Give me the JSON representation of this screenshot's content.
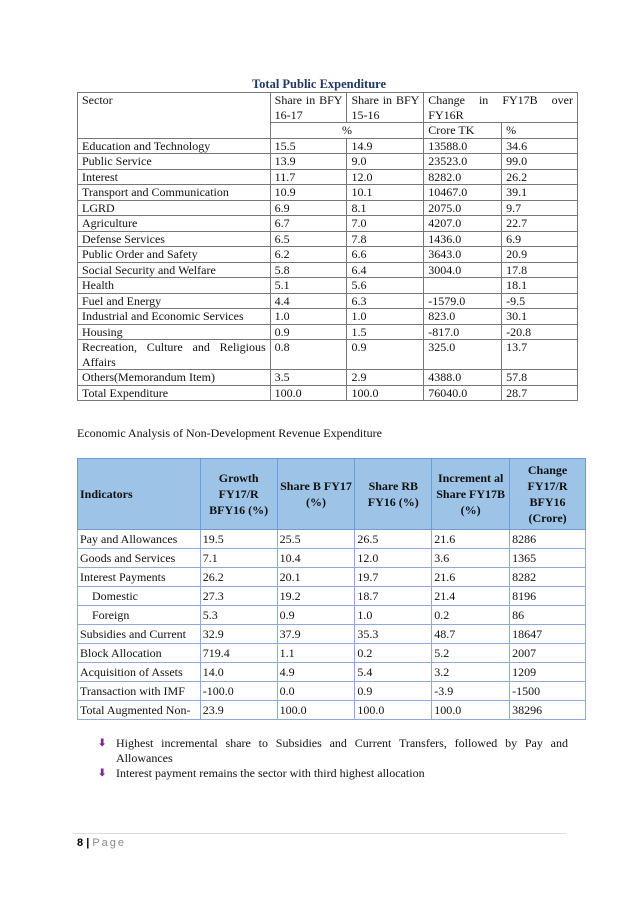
{
  "table1": {
    "title": "Total Public Expenditure",
    "headers": {
      "sector": "Sector",
      "share1": "Share in BFY 16-17",
      "share2": "Share in BFY 15-16",
      "change": "Change in FY17B over FY16R",
      "unit_pct": "%",
      "unit_crore": "Crore TK",
      "unit_pct2": "%"
    },
    "rows": [
      [
        "Education and Technology",
        "15.5",
        "14.9",
        "13588.0",
        "34.6"
      ],
      [
        "Public Service",
        "13.9",
        "9.0",
        "23523.0",
        "99.0"
      ],
      [
        "Interest",
        "11.7",
        "12.0",
        "8282.0",
        "26.2"
      ],
      [
        "Transport and Communication",
        "10.9",
        "10.1",
        "10467.0",
        "39.1"
      ],
      [
        "LGRD",
        "6.9",
        "8.1",
        "2075.0",
        "9.7"
      ],
      [
        "Agriculture",
        "6.7",
        "7.0",
        "4207.0",
        "22.7"
      ],
      [
        "Defense Services",
        "6.5",
        "7.8",
        "1436.0",
        "6.9"
      ],
      [
        "Public Order and Safety",
        "6.2",
        "6.6",
        "3643.0",
        "20.9"
      ],
      [
        "Social Security and Welfare",
        "5.8",
        "6.4",
        "3004.0",
        "17.8"
      ],
      [
        "Health",
        "5.1",
        "5.6",
        "",
        "18.1"
      ],
      [
        "Fuel and Energy",
        "4.4",
        "6.3",
        "-1579.0",
        "-9.5"
      ],
      [
        "Industrial and Economic Services",
        "1.0",
        "1.0",
        "823.0",
        "30.1"
      ],
      [
        "Housing",
        "0.9",
        "1.5",
        "-817.0",
        "-20.8"
      ],
      [
        "Recreation, Culture and Religious Affairs",
        "0.8",
        "0.9",
        "325.0",
        "13.7"
      ],
      [
        "Others(Memorandum Item)",
        "3.5",
        "2.9",
        "4388.0",
        "57.8"
      ],
      [
        "Total Expenditure",
        "100.0",
        "100.0",
        "76040.0",
        "28.7"
      ]
    ]
  },
  "table2": {
    "title": "Economic Analysis of Non-Development Revenue Expenditure",
    "headers": [
      "Indicators",
      "Growth FY17/R BFY16 (%)",
      "Share B FY17 (%)",
      "Share RB FY16 (%)",
      "Increment al Share FY17B (%)",
      "Change FY17/R BFY16 (Crore)"
    ],
    "rows": [
      [
        "Pay and Allowances",
        "19.5",
        "25.5",
        "26.5",
        "21.6",
        "8286"
      ],
      [
        "Goods and Services",
        "7.1",
        "10.4",
        "12.0",
        "3.6",
        "1365"
      ],
      [
        "Interest Payments",
        "26.2",
        "20.1",
        "19.7",
        "21.6",
        "8282"
      ],
      [
        "Domestic",
        "27.3",
        "19.2",
        "18.7",
        "21.4",
        "8196"
      ],
      [
        "Foreign",
        "5.3",
        "0.9",
        "1.0",
        "0.2",
        "86"
      ],
      [
        "Subsidies and Current",
        "32.9",
        "37.9",
        "35.3",
        "48.7",
        "18647"
      ],
      [
        "Block Allocation",
        "719.4",
        "1.1",
        "0.2",
        "5.2",
        "2007"
      ],
      [
        "Acquisition of Assets",
        "14.0",
        "4.9",
        "5.4",
        "3.2",
        "1209"
      ],
      [
        "Transaction with IMF",
        "-100.0",
        "0.0",
        "0.9",
        "-3.9",
        "-1500"
      ],
      [
        "Total Augmented Non-",
        "23.9",
        "100.0",
        "100.0",
        "100.0",
        "38296"
      ]
    ]
  },
  "bullets": [
    "Highest incremental share to Subsidies and Current Transfers, followed by Pay and Allowances",
    "Interest payment remains the sector with third highest allocation"
  ],
  "bullet_icon": "down-arrow-bullet-icon",
  "footer": {
    "page_number": "8",
    "separator": "|",
    "page_label": "Page"
  },
  "colors": {
    "title": "#1f3864",
    "table2_header": "#9dc3e6",
    "table2_border": "#8eaadb"
  }
}
